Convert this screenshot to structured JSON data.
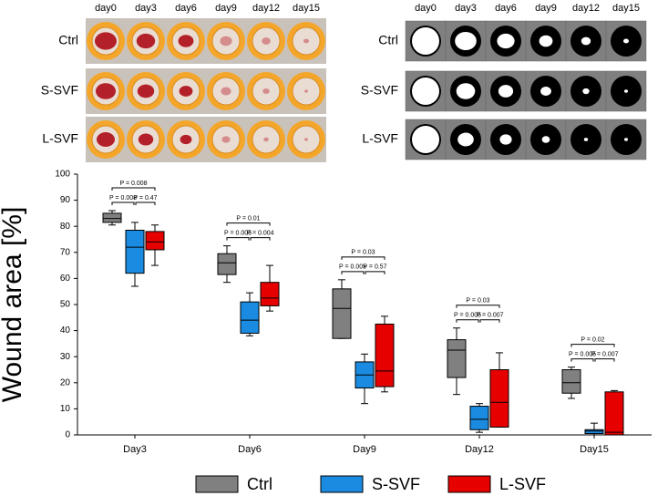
{
  "left_panel": {
    "columns": [
      "day0",
      "day3",
      "day6",
      "day9",
      "day12",
      "day15"
    ],
    "rows": [
      "Ctrl",
      "S-SVF",
      "L-SVF"
    ]
  },
  "right_panel": {
    "columns": [
      "day0",
      "day3",
      "day6",
      "day9",
      "day12",
      "day15"
    ],
    "rows": [
      "Ctrl",
      "S-SVF",
      "L-SVF"
    ]
  },
  "chart_data": {
    "type": "box",
    "ylabel": "Wound area [%]",
    "categories": [
      "Day3",
      "Day6",
      "Day9",
      "Day12",
      "Day15"
    ],
    "ylim": [
      0,
      100
    ],
    "yticks": [
      0,
      10,
      20,
      30,
      40,
      50,
      60,
      70,
      80,
      90,
      100
    ],
    "series": [
      {
        "name": "Ctrl",
        "color": "#808080",
        "values": [
          [
            80.5,
            81.5,
            83,
            85,
            86
          ],
          [
            58.5,
            61.5,
            66,
            69.5,
            72.5
          ],
          [
            37,
            37,
            48.5,
            56,
            59.5
          ],
          [
            15.5,
            22,
            32.5,
            36.5,
            41
          ],
          [
            14,
            16,
            20,
            25,
            26
          ]
        ]
      },
      {
        "name": "S-SVF",
        "color": "#1a8be0",
        "values": [
          [
            57,
            62,
            72,
            78.5,
            81.5
          ],
          [
            38,
            39,
            44,
            51,
            54.5
          ],
          [
            12,
            18,
            23,
            28,
            31
          ],
          [
            1,
            2,
            6,
            11,
            12
          ],
          [
            0,
            0.5,
            1.5,
            2,
            4.5
          ]
        ]
      },
      {
        "name": "L-SVF",
        "color": "#e60000",
        "values": [
          [
            65,
            71,
            74,
            78,
            80.5
          ],
          [
            47.5,
            49.5,
            52.5,
            58.5,
            65
          ],
          [
            16.5,
            18.5,
            24.5,
            42.5,
            45.5
          ],
          [
            3,
            3,
            12.5,
            25,
            31.5
          ],
          [
            0,
            0,
            1,
            16.5,
            17
          ]
        ]
      }
    ],
    "p_labels": [
      [
        "P = 0.008",
        "P = 0.008",
        "P = 0.47"
      ],
      [
        "P = 0.01",
        "P = 0.005",
        "P = 0.004"
      ],
      [
        "P = 0.03",
        "P = 0.005",
        "P = 0.57"
      ],
      [
        "P = 0.03",
        "P = 0.005",
        "P = 0.007"
      ],
      [
        "P = 0.02",
        "P = 0.005",
        "P = 0.007"
      ]
    ]
  }
}
